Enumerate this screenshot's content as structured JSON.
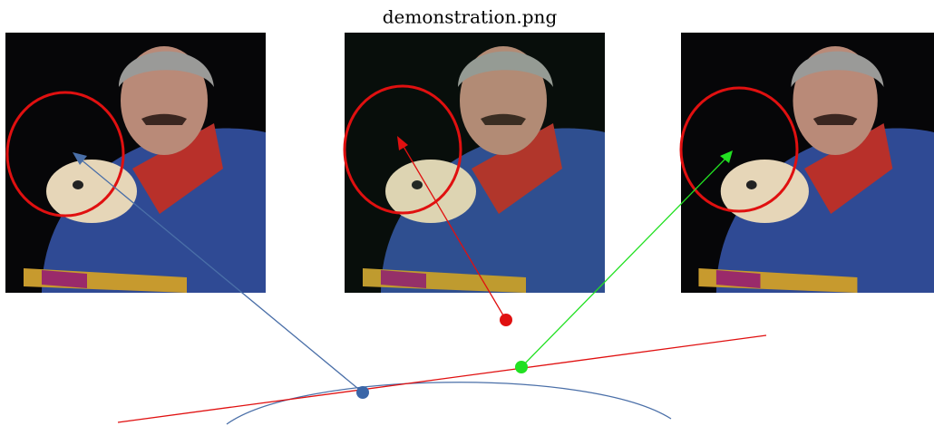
{
  "title": "demonstration.png"
}
